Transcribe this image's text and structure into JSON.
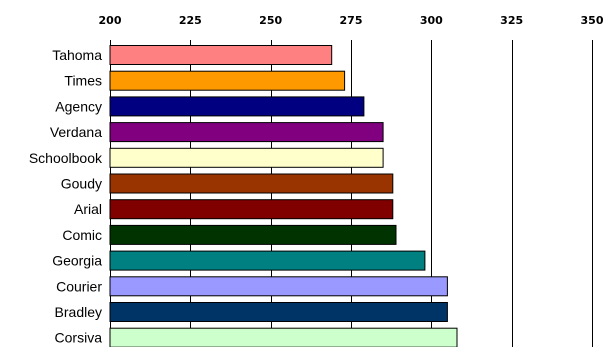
{
  "chart_data": {
    "type": "bar",
    "orientation": "horizontal",
    "title": "",
    "xlabel": "",
    "ylabel": "",
    "xlim": [
      200,
      350
    ],
    "x_ticks": [
      "200",
      "225",
      "250",
      "275",
      "300",
      "325",
      "350"
    ],
    "x_tick_values": [
      200,
      225,
      250,
      275,
      300,
      325,
      350
    ],
    "grid": "vertical",
    "legend": "none",
    "categories": [
      "Tahoma",
      "Times",
      "Agency",
      "Verdana",
      "Schoolbook",
      "Goudy",
      "Arial",
      "Comic",
      "Georgia",
      "Courier",
      "Bradley",
      "Corsiva"
    ],
    "values": [
      269,
      273,
      279,
      285,
      285,
      288,
      288,
      289,
      298,
      305,
      305,
      308
    ],
    "colors": [
      "#ff8080",
      "#ff9900",
      "#000080",
      "#800080",
      "#ffffcc",
      "#993300",
      "#800000",
      "#003300",
      "#008080",
      "#9999ff",
      "#003366",
      "#ccffcc"
    ]
  }
}
